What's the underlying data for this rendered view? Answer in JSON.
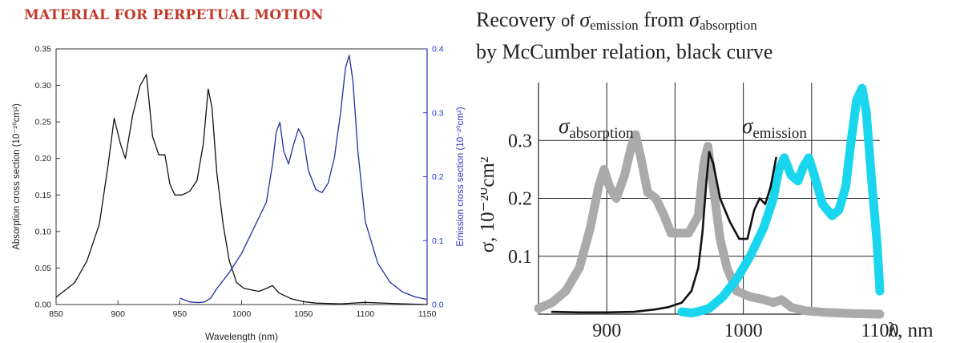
{
  "left_panel": {
    "heading": "MATERIAL FOR PERPETUAL MOTION"
  },
  "right_panel": {
    "title_line1_part1": "Recovery",
    "title_line1_of": "of",
    "title_sigma": "σ",
    "title_sub_emission": "emission",
    "title_from": "from",
    "title_sub_absorption": "absorption",
    "title_line2": "by McCumber relation, black curve"
  },
  "colors": {
    "absorption_left": "#111111",
    "emission_left": "#1f2fa0",
    "absorption_right": "#aaaaaa",
    "emission_right": "#19d6ee",
    "mccumber": "#111111",
    "title_red": "#c0392b",
    "axis_blue": "#2b35c4"
  },
  "chart_data": [
    {
      "type": "line",
      "xlabel": "Wavelength (nm)",
      "ylabel": "Absorption cross section (10⁻²⁰cm²)",
      "y2label": "Emission cross section (10⁻²⁰cm²)",
      "xlim": [
        850,
        1150
      ],
      "ylim": [
        0,
        0.35
      ],
      "y2lim": [
        0,
        0.4
      ],
      "x_ticks": [
        "850",
        "900",
        "950",
        "1000",
        "1050",
        "1100",
        "1150"
      ],
      "y_ticks": [
        "0.00",
        "0.05",
        "0.10",
        "0.15",
        "0.20",
        "0.25",
        "0.30",
        "0.35"
      ],
      "y2_ticks": [
        "0.0",
        "0.1",
        "0.2",
        "0.3",
        "0.4"
      ],
      "grid": false,
      "series": [
        {
          "axis": "left",
          "color": "#111111",
          "x": [
            850,
            865,
            875,
            885,
            892,
            897,
            902,
            906,
            912,
            918,
            923,
            928,
            933,
            938,
            942,
            946,
            952,
            958,
            964,
            969,
            973,
            976,
            980,
            985,
            990,
            996,
            1002,
            1008,
            1014,
            1020,
            1025,
            1030,
            1040,
            1050,
            1060,
            1080,
            1100,
            1130,
            1150
          ],
          "y": [
            0.01,
            0.03,
            0.06,
            0.11,
            0.19,
            0.255,
            0.22,
            0.2,
            0.26,
            0.3,
            0.315,
            0.23,
            0.205,
            0.205,
            0.165,
            0.15,
            0.15,
            0.155,
            0.17,
            0.22,
            0.295,
            0.27,
            0.18,
            0.11,
            0.06,
            0.03,
            0.022,
            0.02,
            0.018,
            0.022,
            0.026,
            0.016,
            0.008,
            0.004,
            0.002,
            0.001,
            0.003,
            0.001,
            0.0
          ]
        },
        {
          "axis": "right",
          "color": "#1f2fa0",
          "x": [
            950,
            958,
            965,
            970,
            975,
            980,
            990,
            1000,
            1010,
            1020,
            1025,
            1028,
            1031,
            1034,
            1038,
            1042,
            1046,
            1050,
            1054,
            1060,
            1065,
            1070,
            1075,
            1080,
            1084,
            1087,
            1090,
            1094,
            1100,
            1110,
            1120,
            1130,
            1140,
            1150
          ],
          "y": [
            0.01,
            0.004,
            0.003,
            0.004,
            0.01,
            0.025,
            0.05,
            0.08,
            0.12,
            0.16,
            0.22,
            0.27,
            0.285,
            0.24,
            0.22,
            0.25,
            0.275,
            0.26,
            0.21,
            0.18,
            0.175,
            0.19,
            0.23,
            0.3,
            0.37,
            0.39,
            0.35,
            0.24,
            0.13,
            0.065,
            0.035,
            0.02,
            0.012,
            0.008
          ]
        }
      ]
    },
    {
      "type": "line",
      "xlabel": "λ, nm",
      "ylabel": "σ, 10⁻²⁰cm²",
      "xlim": [
        850,
        1100
      ],
      "ylim": [
        0,
        0.4
      ],
      "x_ticks": [
        "900",
        "1000",
        "1100"
      ],
      "y_ticks": [
        "0.1",
        "0.2",
        "0.3"
      ],
      "grid": true,
      "labels": [
        {
          "text": "σ",
          "sub": "absorption"
        },
        {
          "text": "σ",
          "sub": "emission"
        }
      ],
      "series": [
        {
          "color": "#aaaaaa",
          "x": [
            850,
            860,
            870,
            880,
            888,
            894,
            898,
            902,
            907,
            913,
            918,
            921,
            925,
            930,
            936,
            942,
            947,
            952,
            960,
            967,
            971,
            974,
            978,
            983,
            988,
            995,
            1005,
            1015,
            1022,
            1028,
            1035,
            1045,
            1060,
            1080,
            1100
          ],
          "y": [
            0.01,
            0.02,
            0.04,
            0.08,
            0.15,
            0.22,
            0.25,
            0.22,
            0.2,
            0.24,
            0.29,
            0.31,
            0.27,
            0.21,
            0.2,
            0.17,
            0.14,
            0.14,
            0.14,
            0.17,
            0.26,
            0.29,
            0.22,
            0.13,
            0.08,
            0.04,
            0.03,
            0.025,
            0.02,
            0.025,
            0.012,
            0.006,
            0.003,
            0.001,
            0.0
          ]
        },
        {
          "color": "#19d6ee",
          "x": [
            955,
            962,
            968,
            975,
            985,
            995,
            1005,
            1015,
            1022,
            1026,
            1030,
            1035,
            1040,
            1044,
            1048,
            1052,
            1058,
            1065,
            1070,
            1075,
            1079,
            1083,
            1087,
            1090,
            1094,
            1098,
            1100
          ],
          "y": [
            0.004,
            0.002,
            0.005,
            0.01,
            0.03,
            0.06,
            0.1,
            0.15,
            0.2,
            0.25,
            0.27,
            0.24,
            0.23,
            0.255,
            0.27,
            0.24,
            0.19,
            0.17,
            0.18,
            0.22,
            0.3,
            0.37,
            0.39,
            0.35,
            0.23,
            0.12,
            0.04
          ]
        },
        {
          "color": "#111111",
          "x": [
            860,
            880,
            900,
            920,
            935,
            945,
            955,
            962,
            967,
            970,
            973,
            975,
            978,
            983,
            990,
            997,
            1003,
            1008,
            1012,
            1016,
            1020,
            1024
          ],
          "y": [
            0.004,
            0.003,
            0.003,
            0.004,
            0.008,
            0.012,
            0.02,
            0.04,
            0.08,
            0.14,
            0.23,
            0.28,
            0.26,
            0.2,
            0.16,
            0.13,
            0.13,
            0.18,
            0.2,
            0.19,
            0.22,
            0.27
          ]
        }
      ]
    }
  ]
}
